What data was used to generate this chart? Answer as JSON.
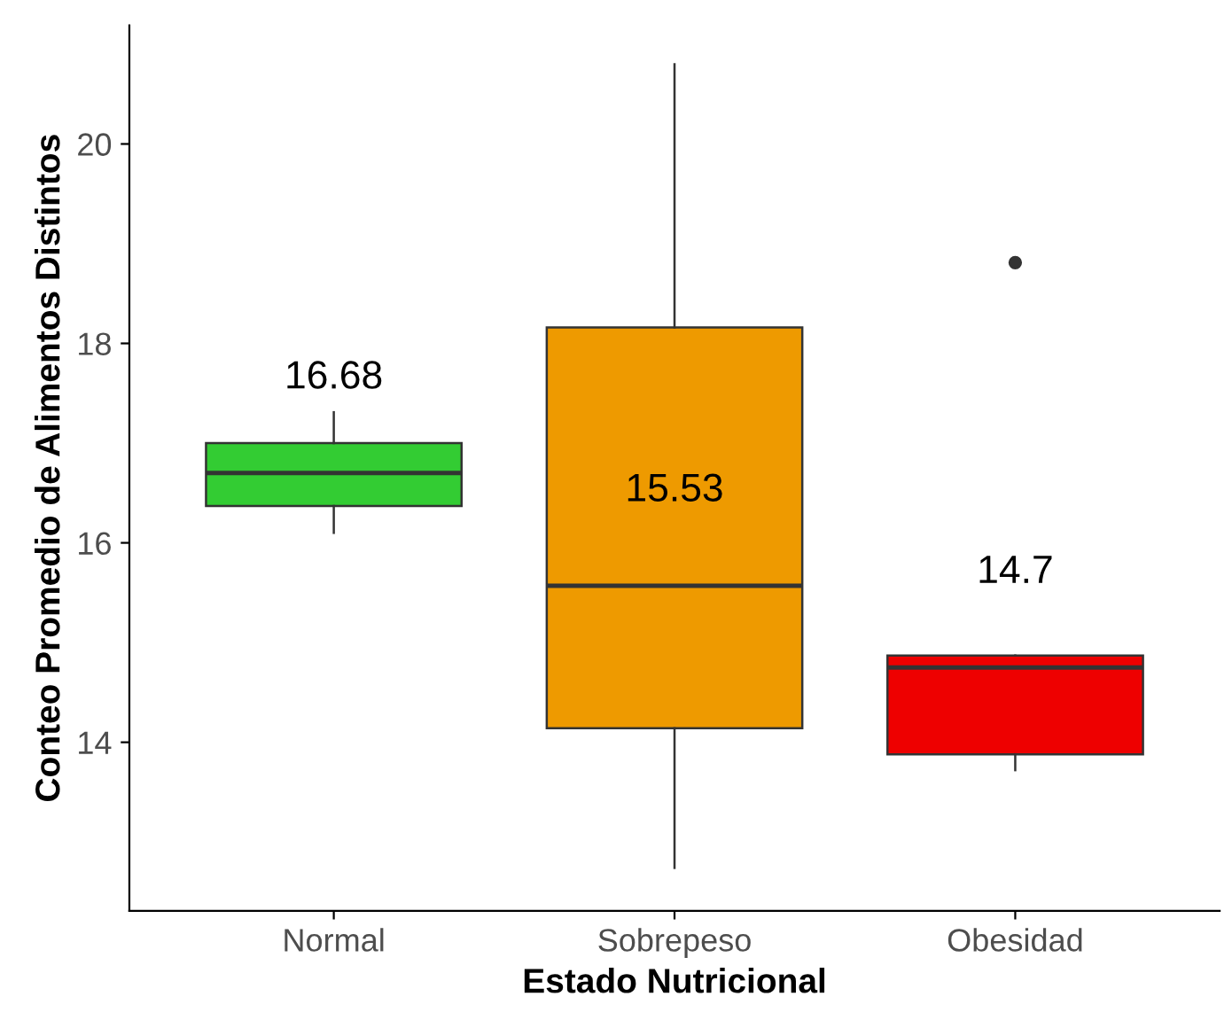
{
  "chart_data": {
    "type": "box",
    "xlabel": "Estado Nutricional",
    "ylabel": "Conteo Promedio de Alimentos Distintos",
    "categories": [
      "Normal",
      "Sobrepeso",
      "Obesidad"
    ],
    "colors": [
      "#33cc33",
      "#ee9a00",
      "#ee0000"
    ],
    "boxes": [
      {
        "low": 16.1,
        "q1": 16.37,
        "median": 16.7,
        "q3": 17.0,
        "high": 17.31
      },
      {
        "low": 12.74,
        "q1": 14.14,
        "median": 15.57,
        "q3": 18.16,
        "high": 20.8
      },
      {
        "low": 13.72,
        "q1": 13.88,
        "median": 14.75,
        "q3": 14.87,
        "high": 14.87,
        "outliers": [
          18.81
        ]
      }
    ],
    "annotations": [
      "16.68",
      "15.53",
      "14.7"
    ],
    "ylim": [
      12.31,
      21.19
    ],
    "yticks": [
      14,
      16,
      18,
      20
    ],
    "grid": false
  }
}
